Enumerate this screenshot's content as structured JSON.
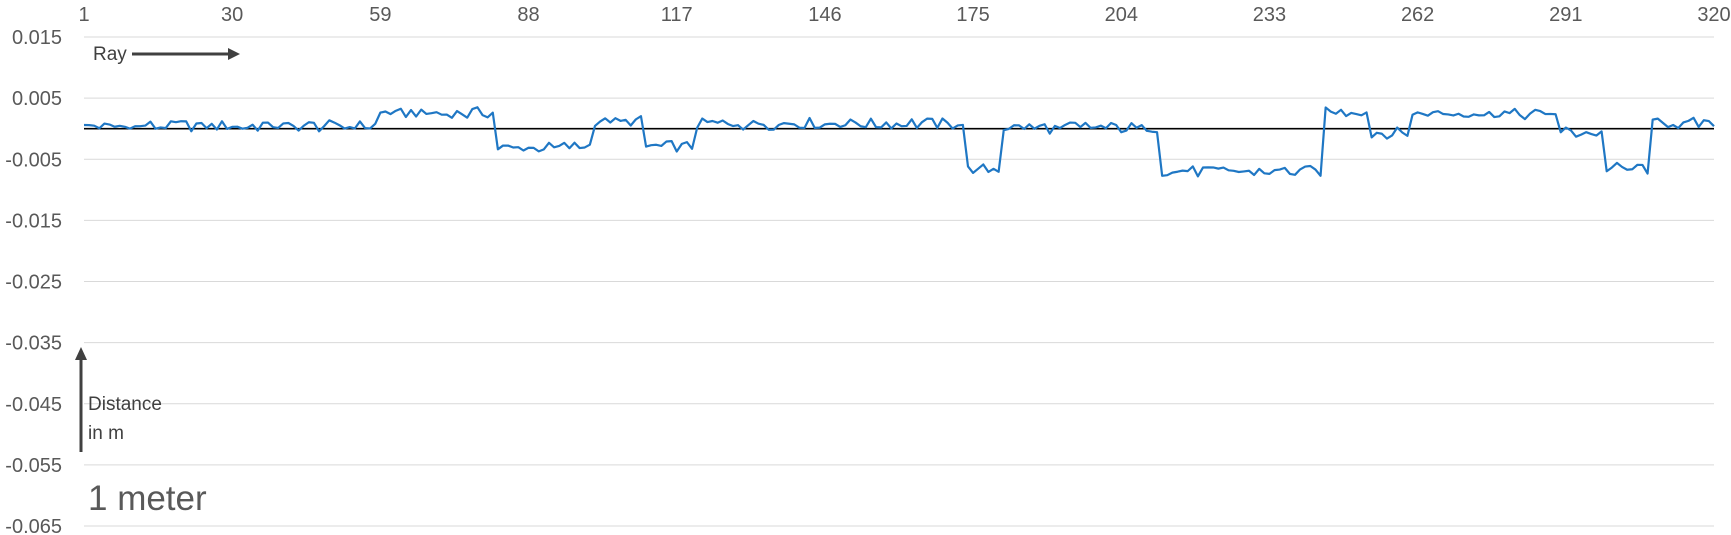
{
  "chart_data": {
    "type": "line",
    "title": "",
    "xlabel": "",
    "ylabel": "",
    "xlim": [
      1,
      320
    ],
    "ylim": [
      -0.065,
      0.015
    ],
    "x_tick_labels": [
      "1",
      "30",
      "59",
      "88",
      "117",
      "146",
      "175",
      "204",
      "233",
      "262",
      "291",
      "320"
    ],
    "y_tick_labels": [
      "0.015",
      "0.005",
      "-0.005",
      "-0.015",
      "-0.025",
      "-0.035",
      "-0.045",
      "-0.055",
      "-0.065"
    ],
    "grid": "horizontal",
    "reference_line_y": 0,
    "line_color": "#1f77c4",
    "annotations": {
      "x_arrow_label": "Ray",
      "y_arrow_label_line1": "Distance",
      "y_arrow_label_line2": "in m",
      "scale_label": "1 meter"
    },
    "segments": [
      {
        "x_start": 1,
        "x_end": 58,
        "level": 0.0005
      },
      {
        "x_start": 59,
        "x_end": 81,
        "level": 0.0025
      },
      {
        "x_start": 82,
        "x_end": 100,
        "level": -0.003
      },
      {
        "x_start": 101,
        "x_end": 110,
        "level": 0.0013
      },
      {
        "x_start": 111,
        "x_end": 120,
        "level": -0.0028
      },
      {
        "x_start": 121,
        "x_end": 173,
        "level": 0.0008
      },
      {
        "x_start": 174,
        "x_end": 180,
        "level": -0.0068
      },
      {
        "x_start": 181,
        "x_end": 211,
        "level": 0.0002
      },
      {
        "x_start": 212,
        "x_end": 243,
        "level": -0.007
      },
      {
        "x_start": 244,
        "x_end": 252,
        "level": 0.0028
      },
      {
        "x_start": 253,
        "x_end": 260,
        "level": -0.0008
      },
      {
        "x_start": 261,
        "x_end": 289,
        "level": 0.0025
      },
      {
        "x_start": 290,
        "x_end": 298,
        "level": -0.0007
      },
      {
        "x_start": 299,
        "x_end": 307,
        "level": -0.0065
      },
      {
        "x_start": 308,
        "x_end": 320,
        "level": 0.0008
      }
    ]
  }
}
